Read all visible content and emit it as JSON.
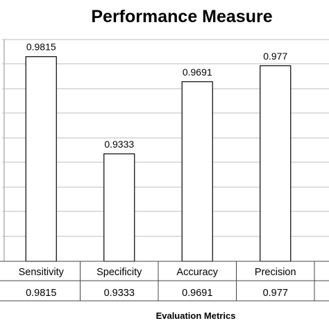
{
  "chart_data": {
    "type": "bar",
    "title": "Performance Measure",
    "xlabel": "Evaluation Metrics",
    "ylabel": "",
    "categories": [
      "Sensitivity",
      "Specificity",
      "Accuracy",
      "Precision"
    ],
    "values": [
      0.9815,
      0.9333,
      0.9691,
      0.977
    ],
    "value_labels": [
      "0.9815",
      "0.9333",
      "0.9691",
      "0.977"
    ],
    "ylim": [
      0.88,
      0.99
    ],
    "grid": true,
    "data_table": true
  }
}
